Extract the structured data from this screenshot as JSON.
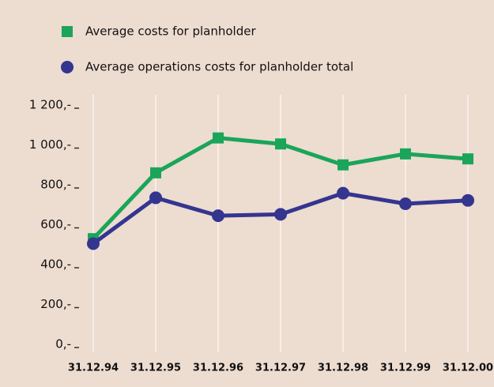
{
  "chart_data": {
    "type": "line",
    "categories": [
      "31.12.94",
      "31.12.95",
      "31.12.96",
      "31.12.97",
      "31.12.98",
      "31.12.99",
      "31.12.00"
    ],
    "series": [
      {
        "name": "Average costs for planholder",
        "color": "#1aa55a",
        "marker": "square",
        "values": [
          530,
          860,
          1035,
          1005,
          900,
          955,
          930
        ]
      },
      {
        "name": "Average operations costs for planholder total",
        "color": "#34358f",
        "marker": "circle",
        "values": [
          505,
          735,
          645,
          652,
          758,
          705,
          722
        ]
      }
    ],
    "ylim": [
      0,
      1200
    ],
    "yticks": [
      {
        "value": 0,
        "label": "0,-"
      },
      {
        "value": 200,
        "label": "200,-"
      },
      {
        "value": 400,
        "label": "400,-"
      },
      {
        "value": 600,
        "label": "600,-"
      },
      {
        "value": 800,
        "label": "800,-"
      },
      {
        "value": 1000,
        "label": "1 000,-"
      },
      {
        "value": 1200,
        "label": "1 200,-"
      }
    ],
    "grid": true
  }
}
